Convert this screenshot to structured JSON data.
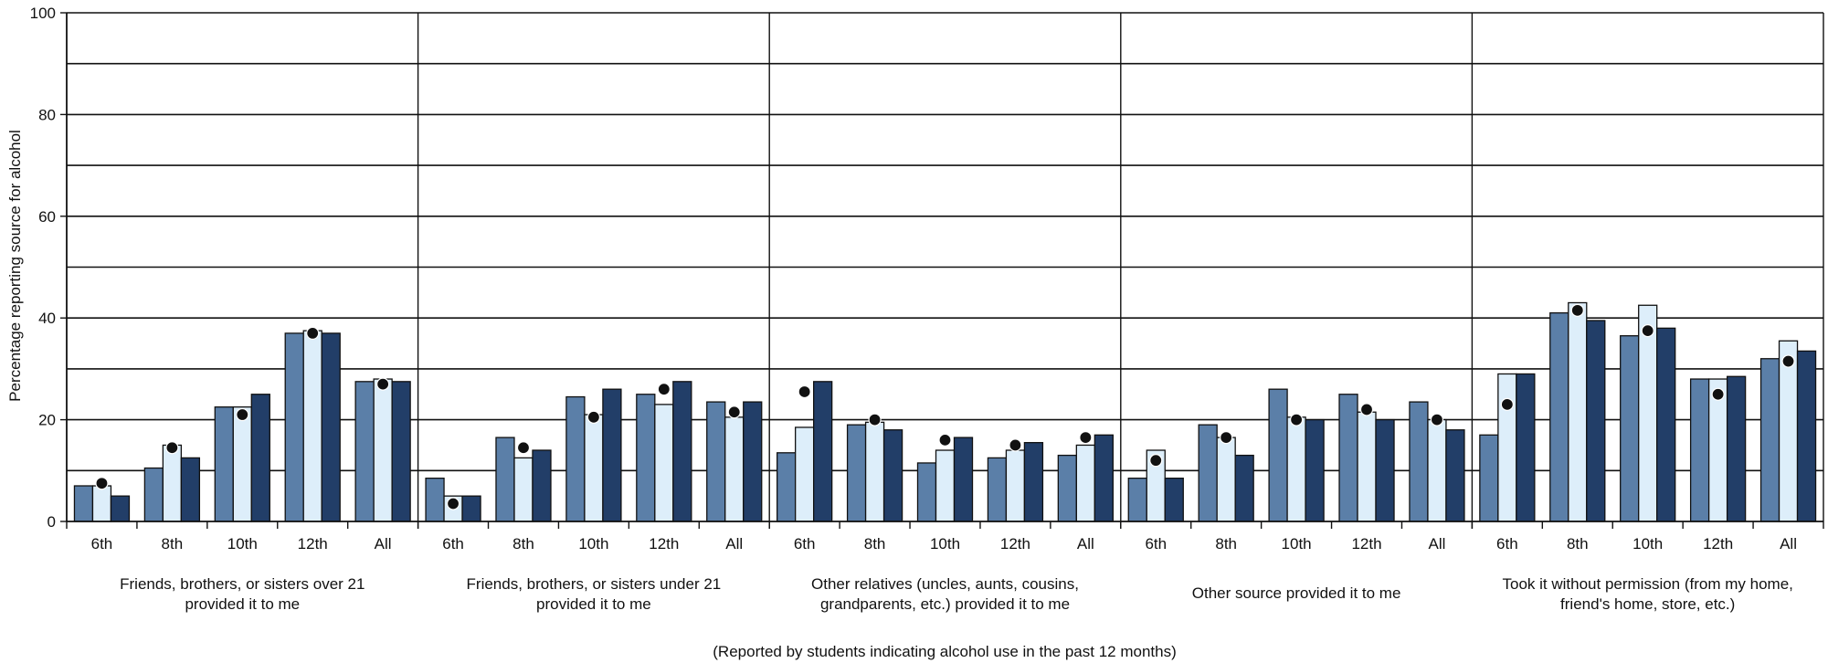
{
  "chart_data": {
    "type": "bar",
    "ylabel": "Percentage reporting source for alcohol",
    "footnote": "(Reported by students indicating alcohol use in the past 12 months)",
    "ylim": [
      0,
      100
    ],
    "yticks": [
      0,
      20,
      40,
      60,
      80,
      100
    ],
    "gridlines": [
      10,
      20,
      30,
      40,
      50,
      60,
      70,
      80,
      90,
      100
    ],
    "grid": true,
    "legend": "none",
    "bar_colors": [
      "#5b7fa8",
      "#ddeefa",
      "#223e68"
    ],
    "dot_color": "#111111",
    "groups": [
      {
        "label_lines": [
          "Friends, brothers, or sisters over 21",
          "provided it to me"
        ],
        "categories": [
          "6th",
          "8th",
          "10th",
          "12th",
          "All"
        ],
        "series_values": [
          [
            7,
            10.5,
            22.5,
            37,
            27.5
          ],
          [
            7,
            15,
            22.5,
            37.5,
            28
          ],
          [
            5,
            12.5,
            25,
            37,
            27.5
          ]
        ],
        "dots": [
          7.5,
          14.5,
          21,
          37,
          27
        ]
      },
      {
        "label_lines": [
          "Friends, brothers, or sisters under 21",
          "provided it to me"
        ],
        "categories": [
          "6th",
          "8th",
          "10th",
          "12th",
          "All"
        ],
        "series_values": [
          [
            8.5,
            16.5,
            24.5,
            25,
            23.5
          ],
          [
            5,
            12.5,
            21,
            23,
            20.5
          ],
          [
            5,
            14,
            26,
            27.5,
            23.5
          ]
        ],
        "dots": [
          3.5,
          14.5,
          20.5,
          26,
          21.5
        ]
      },
      {
        "label_lines": [
          "Other relatives (uncles, aunts, cousins,",
          "grandparents, etc.) provided it to me"
        ],
        "categories": [
          "6th",
          "8th",
          "10th",
          "12th",
          "All"
        ],
        "series_values": [
          [
            13.5,
            19,
            11.5,
            12.5,
            13
          ],
          [
            18.5,
            19.5,
            14,
            14,
            15
          ],
          [
            27.5,
            18,
            16.5,
            15.5,
            17
          ]
        ],
        "dots": [
          25.5,
          20,
          16,
          15,
          16.5
        ]
      },
      {
        "label_lines": [
          "Other source provided it to me"
        ],
        "categories": [
          "6th",
          "8th",
          "10th",
          "12th",
          "All"
        ],
        "series_values": [
          [
            8.5,
            19,
            26,
            25,
            23.5
          ],
          [
            14,
            16.5,
            20.5,
            21.5,
            20
          ],
          [
            8.5,
            13,
            20,
            20,
            18
          ]
        ],
        "dots": [
          12,
          16.5,
          20,
          22,
          20
        ]
      },
      {
        "label_lines": [
          "Took it without permission (from my home,",
          "friend's home, store, etc.)"
        ],
        "categories": [
          "6th",
          "8th",
          "10th",
          "12th",
          "All"
        ],
        "series_values": [
          [
            17,
            41,
            36.5,
            28,
            32
          ],
          [
            29,
            43,
            42.5,
            28,
            35.5
          ],
          [
            29,
            39.5,
            38,
            28.5,
            33.5
          ]
        ],
        "dots": [
          23,
          41.5,
          37.5,
          25,
          31.5
        ]
      }
    ]
  }
}
